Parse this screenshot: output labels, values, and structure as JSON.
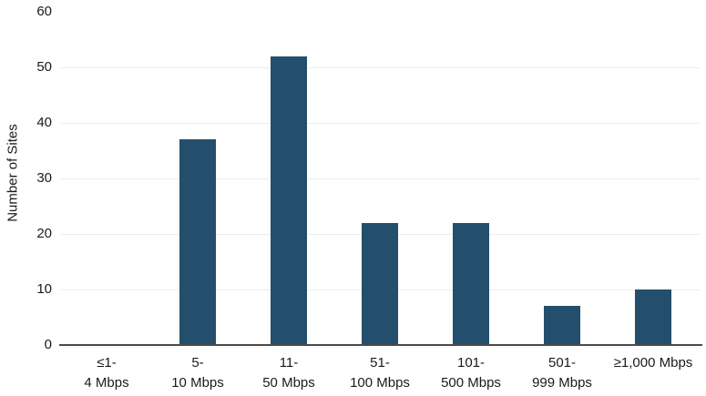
{
  "chart_data": {
    "type": "bar",
    "title": "",
    "xlabel": "",
    "ylabel": "Number of Sites",
    "categories": [
      [
        "≤1-",
        "4 Mbps"
      ],
      [
        "5-",
        "10 Mbps"
      ],
      [
        "11-",
        "50 Mbps"
      ],
      [
        "51-",
        "100 Mbps"
      ],
      [
        "101-",
        "500 Mbps"
      ],
      [
        "501-",
        "999 Mbps"
      ],
      [
        "≥1,000 Mbps"
      ]
    ],
    "values": [
      0,
      37,
      52,
      22,
      22,
      7,
      10
    ],
    "ylim": [
      0,
      60
    ],
    "yticks": [
      0,
      10,
      20,
      30,
      40,
      50,
      60
    ],
    "gridline_ticks": [
      10,
      20,
      30,
      40,
      50
    ],
    "grid": "horizontal",
    "legend": "none",
    "bar_color": "#234F6C",
    "axis_color": "#4a4a4a",
    "gridline_color": "#ececec",
    "text_color": "#1a1a1a"
  }
}
